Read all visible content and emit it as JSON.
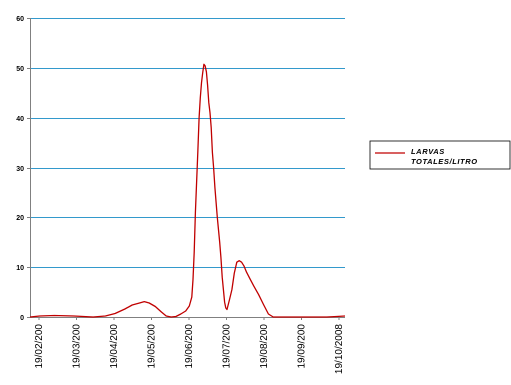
{
  "chart_data": {
    "type": "line",
    "title": "",
    "xlabel": "",
    "ylabel": "",
    "ylim": [
      0,
      60
    ],
    "yticks": [
      0,
      10,
      20,
      30,
      40,
      50,
      60
    ],
    "grid": "horizontal",
    "legend_position": "right",
    "x_tick_labels": [
      "19/02/200",
      "19/03/200",
      "19/04/200",
      "19/05/200",
      "19/06/200",
      "19/07/200",
      "19/08/200",
      "19/09/200",
      "19/10/2008"
    ],
    "x_range_days": [
      0,
      259
    ],
    "series": [
      {
        "name": "LARVAS TOTALES/LITRO",
        "color": "#c00000",
        "points": [
          [
            0,
            0.0
          ],
          [
            8,
            0.2
          ],
          [
            20,
            0.3
          ],
          [
            36,
            0.2
          ],
          [
            44,
            0.1
          ],
          [
            52,
            0.0
          ],
          [
            62,
            0.2
          ],
          [
            70,
            0.7
          ],
          [
            78,
            1.6
          ],
          [
            84,
            2.4
          ],
          [
            90,
            2.8
          ],
          [
            94,
            3.1
          ],
          [
            98,
            2.8
          ],
          [
            103,
            2.1
          ],
          [
            108,
            1.0
          ],
          [
            112,
            0.2
          ],
          [
            116,
            0.0
          ],
          [
            120,
            0.1
          ],
          [
            124,
            0.6
          ],
          [
            128,
            1.2
          ],
          [
            131,
            2.2
          ],
          [
            133,
            4.0
          ],
          [
            134,
            7.5
          ],
          [
            135,
            13.0
          ],
          [
            136,
            21.0
          ],
          [
            137,
            27.0
          ],
          [
            138,
            33.0
          ],
          [
            139,
            40.0
          ],
          [
            140,
            44.0
          ],
          [
            141,
            47.0
          ],
          [
            142,
            49.0
          ],
          [
            143,
            50.7
          ],
          [
            144,
            50.4
          ],
          [
            145,
            49.2
          ],
          [
            146,
            46.5
          ],
          [
            147,
            43.0
          ],
          [
            148,
            41.0
          ],
          [
            149,
            38.0
          ],
          [
            150,
            33.0
          ],
          [
            151,
            30.0
          ],
          [
            152,
            26.0
          ],
          [
            153,
            23.0
          ],
          [
            154,
            20.0
          ],
          [
            155,
            17.5
          ],
          [
            156,
            15.0
          ],
          [
            157,
            12.0
          ],
          [
            158,
            8.0
          ],
          [
            159,
            5.5
          ],
          [
            160,
            3.0
          ],
          [
            161,
            1.8
          ],
          [
            162,
            1.5
          ],
          [
            164,
            3.5
          ],
          [
            166,
            5.5
          ],
          [
            168,
            8.8
          ],
          [
            170,
            11.0
          ],
          [
            172,
            11.3
          ],
          [
            174,
            11.0
          ],
          [
            176,
            10.2
          ],
          [
            178,
            9.0
          ],
          [
            181,
            7.6
          ],
          [
            184,
            6.2
          ],
          [
            188,
            4.5
          ],
          [
            192,
            2.5
          ],
          [
            196,
            0.6
          ],
          [
            200,
            0.0
          ],
          [
            208,
            0.0
          ],
          [
            220,
            0.0
          ],
          [
            232,
            0.0
          ],
          [
            244,
            0.0
          ],
          [
            252,
            0.1
          ],
          [
            259,
            0.2
          ]
        ]
      }
    ]
  }
}
